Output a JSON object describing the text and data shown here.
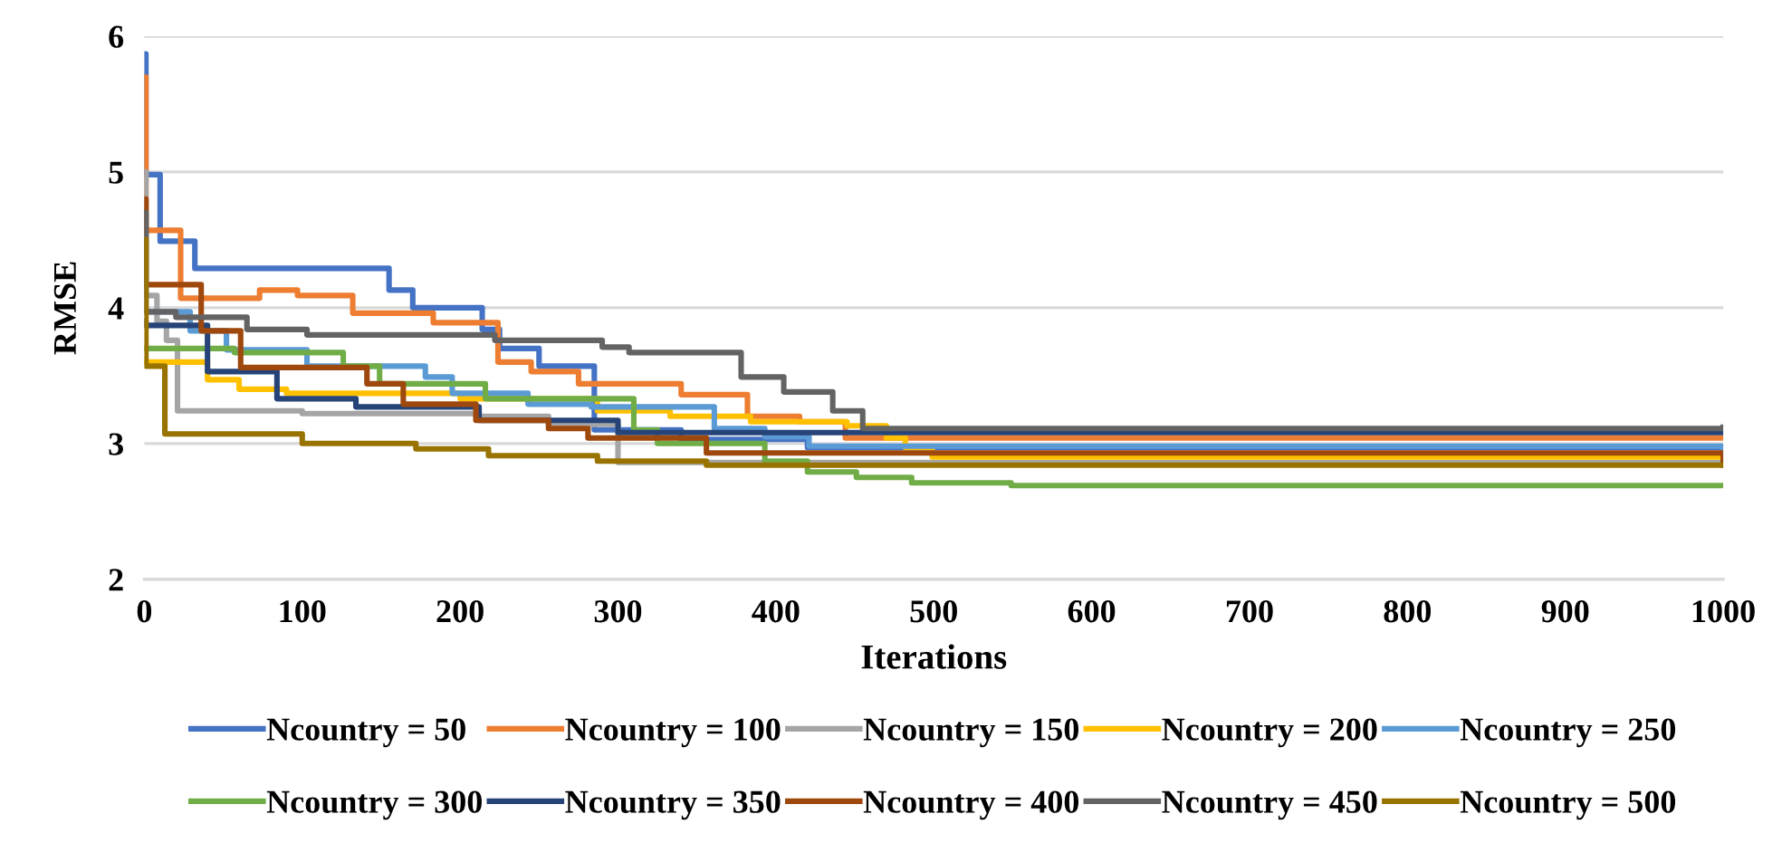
{
  "chart_data": {
    "type": "step",
    "xlabel": "Iterations",
    "ylabel": "RMSE",
    "xlim": [
      0,
      1000
    ],
    "xticks": [
      0,
      100,
      200,
      300,
      400,
      500,
      600,
      700,
      800,
      900,
      1000
    ],
    "ylim": [
      2,
      6
    ],
    "yticks": [
      2,
      3,
      4,
      5,
      6
    ],
    "grid": "y",
    "legend": "bottom",
    "line_style": "solid",
    "marker": "none",
    "series": [
      {
        "name": "Ncountry = 50",
        "color": "#4472c4",
        "x": [
          0,
          1,
          10,
          32,
          155,
          170,
          214,
          225,
          250,
          285,
          340,
          420,
          1000
        ],
        "values": [
          5.87,
          4.98,
          4.49,
          4.29,
          4.13,
          4.0,
          3.84,
          3.7,
          3.57,
          3.1,
          3.03,
          2.97,
          2.97
        ]
      },
      {
        "name": "Ncountry = 100",
        "color": "#ed7d31",
        "x": [
          0,
          1,
          23,
          73,
          97,
          132,
          183,
          224,
          245,
          275,
          340,
          382,
          415,
          444,
          1000
        ],
        "values": [
          5.7,
          4.57,
          4.07,
          4.13,
          4.09,
          3.96,
          3.89,
          3.6,
          3.53,
          3.44,
          3.36,
          3.2,
          3.16,
          3.04,
          3.04
        ]
      },
      {
        "name": "Ncountry = 150",
        "color": "#a5a5a5",
        "x": [
          0,
          1,
          8,
          14,
          21,
          100,
          210,
          256,
          300,
          1000
        ],
        "values": [
          5.0,
          4.09,
          3.9,
          3.76,
          3.24,
          3.22,
          3.2,
          3.14,
          2.86,
          2.86
        ]
      },
      {
        "name": "Ncountry = 200",
        "color": "#ffc000",
        "x": [
          0,
          40,
          60,
          90,
          200,
          287,
          333,
          384,
          445,
          470,
          482,
          499,
          1000
        ],
        "values": [
          3.6,
          3.47,
          3.4,
          3.37,
          3.33,
          3.24,
          3.2,
          3.16,
          3.13,
          3.04,
          2.97,
          2.9,
          2.85
        ]
      },
      {
        "name": "Ncountry = 250",
        "color": "#5b9bd5",
        "x": [
          1,
          29,
          52,
          103,
          178,
          195,
          243,
          283,
          361,
          393,
          421,
          1000
        ],
        "values": [
          3.97,
          3.83,
          3.69,
          3.57,
          3.49,
          3.37,
          3.29,
          3.27,
          3.11,
          3.05,
          2.98,
          2.87
        ]
      },
      {
        "name": "Ncountry = 300",
        "color": "#70ad47",
        "x": [
          0,
          57,
          126,
          149,
          216,
          310,
          325,
          393,
          420,
          451,
          486,
          549,
          1000
        ],
        "values": [
          3.7,
          3.67,
          3.57,
          3.44,
          3.33,
          3.1,
          3.0,
          2.87,
          2.79,
          2.75,
          2.71,
          2.69,
          2.69
        ]
      },
      {
        "name": "Ncountry = 350",
        "color": "#264478",
        "x": [
          0,
          1,
          40,
          84,
          134,
          212,
          300,
          1000
        ],
        "values": [
          3.9,
          3.87,
          3.53,
          3.33,
          3.27,
          3.17,
          3.08,
          3.08
        ]
      },
      {
        "name": "Ncountry = 400",
        "color": "#9e480e",
        "x": [
          0,
          1,
          36,
          61,
          141,
          164,
          210,
          256,
          281,
          356,
          1000
        ],
        "values": [
          4.8,
          4.17,
          3.83,
          3.56,
          3.44,
          3.29,
          3.17,
          3.11,
          3.04,
          2.93,
          2.84
        ]
      },
      {
        "name": "Ncountry = 450",
        "color": "#636363",
        "x": [
          0,
          1,
          20,
          65,
          103,
          222,
          290,
          307,
          378,
          405,
          436,
          455,
          1000
        ],
        "values": [
          4.7,
          3.97,
          3.93,
          3.84,
          3.8,
          3.76,
          3.71,
          3.67,
          3.49,
          3.38,
          3.24,
          3.11,
          3.12
        ]
      },
      {
        "name": "Ncountry = 500",
        "color": "#997300",
        "x": [
          0,
          1,
          13,
          100,
          172,
          218,
          287,
          356,
          1000
        ],
        "values": [
          4.5,
          3.57,
          3.07,
          3.0,
          2.96,
          2.91,
          2.87,
          2.84,
          2.84
        ]
      }
    ]
  }
}
